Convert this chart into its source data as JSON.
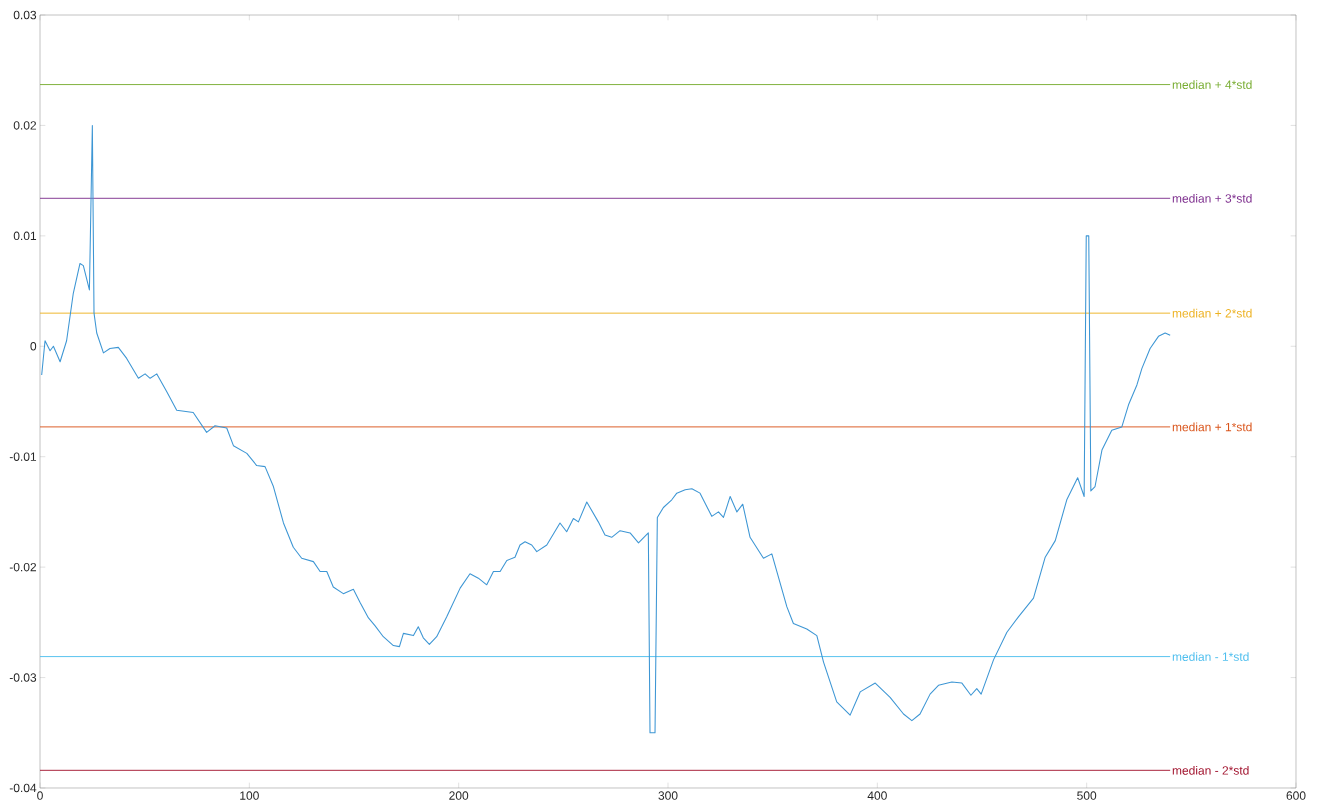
{
  "chart_data": {
    "type": "line",
    "x": [
      0.8,
      2.4,
      4.8,
      6.4,
      9.6,
      12.7,
      15.9,
      19.1,
      20.7,
      23.6,
      25,
      25.8,
      27.1,
      30.3,
      33.4,
      37.4,
      41.4,
      47,
      50.2,
      52.6,
      55.8,
      60.5,
      65.3,
      73.2,
      79.6,
      83.6,
      89.2,
      92.4,
      98.8,
      103.5,
      107.5,
      111.5,
      116.3,
      121,
      125,
      130.6,
      133.8,
      137,
      140.1,
      144.9,
      149.7,
      152.9,
      156.9,
      160,
      164,
      168.8,
      171.7,
      173.6,
      178.4,
      180.7,
      183.1,
      186,
      189.5,
      194.3,
      200.7,
      205.4,
      209.4,
      213.4,
      216.6,
      219.8,
      223,
      226.9,
      229.3,
      231.7,
      234.9,
      237.3,
      242.1,
      248.4,
      251.6,
      254.8,
      257.2,
      261.2,
      266.7,
      269.9,
      273.1,
      277.1,
      281.9,
      285.9,
      290.6,
      291.4,
      293.8,
      294.9,
      297.8,
      301.8,
      304.2,
      308.2,
      311.4,
      315.3,
      320.9,
      324.1,
      326.5,
      329.7,
      332.9,
      335.7,
      339.2,
      345.6,
      349.6,
      356.8,
      359.9,
      366.3,
      371.1,
      374.3,
      380.6,
      387,
      391.8,
      399,
      406.1,
      412.5,
      416.5,
      420.4,
      425.2,
      429.2,
      435.6,
      440.4,
      444.7,
      447.5,
      449.6,
      455.5,
      461.9,
      467.4,
      474.6,
      480.2,
      485,
      490.5,
      495.7,
      498.8,
      499.8,
      501,
      502,
      504,
      507.3,
      512,
      516.8,
      520,
      524,
      526.4,
      530.3,
      534.3,
      537.5,
      539.9
    ],
    "series": [
      {
        "color": "#3d96d4",
        "values": [
          -0.0026,
          0.0005,
          -0.0004,
          0,
          -0.0014,
          0.0005,
          0.0048,
          0.0075,
          0.0073,
          0.0051,
          0.02,
          0.003,
          0.0012,
          -0.0006,
          -0.0002,
          -0.0001,
          -0.0011,
          -0.0029,
          -0.0025,
          -0.0029,
          -0.0025,
          -0.0041,
          -0.0058,
          -0.006,
          -0.0078,
          -0.0072,
          -0.0074,
          -0.009,
          -0.0097,
          -0.0108,
          -0.0109,
          -0.0127,
          -0.016,
          -0.0182,
          -0.0192,
          -0.0195,
          -0.0204,
          -0.0204,
          -0.0218,
          -0.0224,
          -0.022,
          -0.0232,
          -0.0246,
          -0.0253,
          -0.0263,
          -0.0271,
          -0.0272,
          -0.026,
          -0.0262,
          -0.0254,
          -0.0264,
          -0.027,
          -0.0263,
          -0.0245,
          -0.0219,
          -0.0206,
          -0.021,
          -0.0216,
          -0.0204,
          -0.0204,
          -0.0194,
          -0.0191,
          -0.018,
          -0.0177,
          -0.018,
          -0.0186,
          -0.018,
          -0.016,
          -0.0168,
          -0.0156,
          -0.0159,
          -0.0141,
          -0.0159,
          -0.0171,
          -0.0173,
          -0.0167,
          -0.0169,
          -0.0178,
          -0.0169,
          -0.035,
          -0.035,
          -0.0155,
          -0.0146,
          -0.0139,
          -0.0133,
          -0.013,
          -0.0129,
          -0.0133,
          -0.0154,
          -0.015,
          -0.0155,
          -0.0136,
          -0.015,
          -0.0143,
          -0.0173,
          -0.0192,
          -0.0188,
          -0.0236,
          -0.0251,
          -0.0256,
          -0.0262,
          -0.0286,
          -0.0322,
          -0.0334,
          -0.0313,
          -0.0305,
          -0.0318,
          -0.0333,
          -0.0339,
          -0.0333,
          -0.0315,
          -0.0307,
          -0.0304,
          -0.0305,
          -0.0316,
          -0.031,
          -0.0315,
          -0.0284,
          -0.0259,
          -0.0245,
          -0.0228,
          -0.0191,
          -0.0176,
          -0.0139,
          -0.0119,
          -0.0136,
          0.01,
          0.01,
          -0.0131,
          -0.0127,
          -0.0094,
          -0.0076,
          -0.0073,
          -0.0053,
          -0.0035,
          -0.002,
          -0.0002,
          0.0009,
          0.0012,
          0.001
        ]
      }
    ],
    "xlim": [
      0,
      600
    ],
    "ylim": [
      -0.04,
      0.03
    ],
    "xticks": [
      0,
      100,
      200,
      300,
      400,
      500,
      600
    ],
    "yticks": [
      -0.04,
      -0.03,
      -0.02,
      -0.01,
      0,
      0.01,
      0.02,
      0.03
    ],
    "grid": false,
    "marker": "none",
    "line_style": "solid",
    "ref_lines": [
      {
        "axis": "y",
        "value": 0.0237,
        "label": "median + 4*std",
        "color": "#77ac30"
      },
      {
        "axis": "y",
        "value": 0.0134,
        "label": "median + 3*std",
        "color": "#7e2f8e"
      },
      {
        "axis": "y",
        "value": 0.003,
        "label": "median + 2*std",
        "color": "#edb120"
      },
      {
        "axis": "y",
        "value": -0.0073,
        "label": "median + 1*std",
        "color": "#d95319"
      },
      {
        "axis": "y",
        "value": -0.0281,
        "label": "median - 1*std",
        "color": "#4dbeee"
      },
      {
        "axis": "y",
        "value": -0.0384,
        "label": "median - 2*std",
        "color": "#a2142f"
      }
    ]
  }
}
